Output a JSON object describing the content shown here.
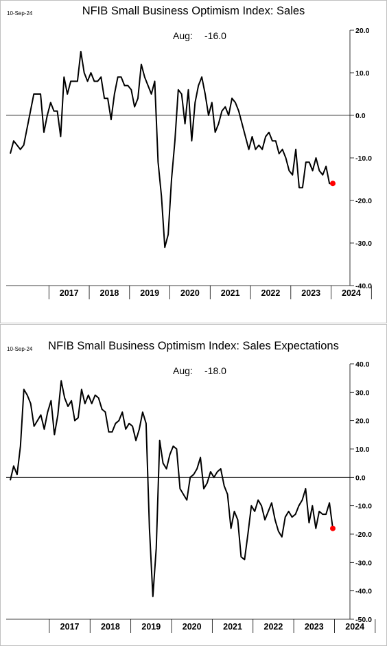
{
  "chart_data": [
    {
      "type": "line",
      "date_label": "10-Sep-24",
      "title": "NFIB Small Business Optimism Index: Sales",
      "annotation": {
        "label": "Aug:",
        "value": "-16.0"
      },
      "years": [
        "2017",
        "2018",
        "2019",
        "2020",
        "2021",
        "2022",
        "2023",
        "2024"
      ],
      "ylim": [
        -40,
        20
      ],
      "yticks": [
        20,
        10,
        0,
        -10,
        -20,
        -30,
        -40
      ],
      "ytick_labels": [
        "20.0",
        "10.0",
        "0.0",
        "-10.0",
        "-20.0",
        "-30.0",
        "-40.0"
      ],
      "zero_line": true,
      "x_start": "2016-01",
      "last_point_color": "#ff0000",
      "line_color": "#000000",
      "values": [
        -9,
        -6,
        -7,
        -8,
        -7,
        -3,
        1,
        5,
        5,
        5,
        -4,
        0,
        3,
        1,
        1,
        -5,
        9,
        5,
        8,
        8,
        8,
        15,
        10,
        8,
        10,
        8,
        8,
        9,
        4,
        4,
        -1,
        5,
        9,
        9,
        7,
        7,
        6,
        2,
        4,
        12,
        9,
        7,
        5,
        8,
        -11,
        -19,
        -31,
        -28,
        -15,
        -6,
        6,
        5,
        -2,
        6,
        -6,
        3,
        7,
        9,
        5,
        0,
        3,
        -4,
        -2,
        1,
        2,
        0,
        4,
        3,
        1,
        -2,
        -5,
        -8,
        -5,
        -8,
        -7,
        -8,
        -5,
        -4,
        -6,
        -6,
        -9,
        -8,
        -10,
        -13,
        -14,
        -8,
        -17,
        -17,
        -11,
        -11,
        -13,
        -10,
        -13,
        -14,
        -12,
        -16,
        -16
      ]
    },
    {
      "type": "line",
      "date_label": "10-Sep-24",
      "title": "NFIB Small Business Optimism Index: Sales Expectations",
      "annotation": {
        "label": "Aug:",
        "value": "-18.0"
      },
      "years": [
        "2017",
        "2018",
        "2019",
        "2020",
        "2021",
        "2022",
        "2023",
        "2024"
      ],
      "ylim": [
        -50,
        40
      ],
      "yticks": [
        40,
        30,
        20,
        10,
        0,
        -10,
        -20,
        -30,
        -40,
        -50
      ],
      "ytick_labels": [
        "40.0",
        "30.0",
        "20.0",
        "10.0",
        "0.0",
        "-10.0",
        "-20.0",
        "-30.0",
        "-40.0",
        "-50.0"
      ],
      "zero_line": true,
      "x_start": "2016-01",
      "last_point_color": "#ff0000",
      "line_color": "#000000",
      "values": [
        -1,
        4,
        1,
        11,
        31,
        29,
        26,
        18,
        20,
        22,
        17,
        23,
        27,
        15,
        22,
        34,
        28,
        25,
        27,
        20,
        21,
        31,
        26,
        29,
        26,
        29,
        28,
        24,
        23,
        16,
        16,
        19,
        20,
        23,
        17,
        19,
        18,
        13,
        17,
        23,
        19,
        -18,
        -42,
        -25,
        13,
        5,
        3,
        8,
        11,
        10,
        -4,
        -6,
        -8,
        0,
        1,
        3,
        7,
        -4,
        -2,
        2,
        0,
        2,
        3,
        -3,
        -6,
        -18,
        -12,
        -15,
        -28,
        -29,
        -20,
        -10,
        -12,
        -8,
        -10,
        -15,
        -12,
        -9,
        -15,
        -19,
        -21,
        -14,
        -12,
        -14,
        -13,
        -10,
        -8,
        -4,
        -16,
        -10,
        -18,
        -12,
        -13,
        -13,
        -9,
        -18
      ]
    }
  ]
}
